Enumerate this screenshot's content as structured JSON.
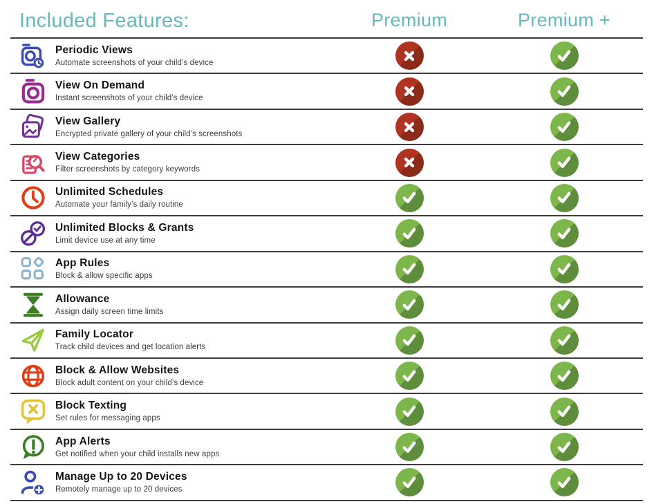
{
  "header": {
    "title": "Included Features:",
    "premium_label": "Premium",
    "premium_plus_label": "Premium +",
    "accent_color": "#68b7be"
  },
  "badge_colors": {
    "check_base": "#7db64a",
    "check_shadow": "#5e8e3c",
    "cross_base": "#b03322",
    "cross_shadow": "#8c2a1a"
  },
  "rows": [
    {
      "icon": "periodic-views-icon",
      "icon_color": "#3b4cb4",
      "title": "Periodic Views",
      "description": "Automate screenshots of your child’s device",
      "premium": "cross",
      "premium_plus": "check"
    },
    {
      "icon": "view-on-demand-icon",
      "icon_color": "#992c8f",
      "title": "View On Demand",
      "description": "Instant screenshots of your child’s device",
      "premium": "cross",
      "premium_plus": "check"
    },
    {
      "icon": "view-gallery-icon",
      "icon_color": "#6e2d96",
      "title": "View Gallery",
      "description": "Encrypted private gallery of your child’s screenshots",
      "premium": "cross",
      "premium_plus": "check"
    },
    {
      "icon": "view-categories-icon",
      "icon_color": "#d84767",
      "title": "View Categories",
      "description": "Filter screenshots by category keywords",
      "premium": "cross",
      "premium_plus": "check"
    },
    {
      "icon": "unlimited-schedules-icon",
      "icon_color": "#dc4016",
      "title": "Unlimited Schedules",
      "description": "Automate your family’s daily routine",
      "premium": "check",
      "premium_plus": "check"
    },
    {
      "icon": "unlimited-blocks-grants-icon",
      "icon_color": "#5d2c91",
      "title": "Unlimited Blocks & Grants",
      "description": "Limit device use at any time",
      "premium": "check",
      "premium_plus": "check"
    },
    {
      "icon": "app-rules-icon",
      "icon_color": "#8fb3cd",
      "title": "App Rules",
      "description": "Block & allow specific apps",
      "premium": "check",
      "premium_plus": "check"
    },
    {
      "icon": "allowance-icon",
      "icon_color": "#3e7d23",
      "title": "Allowance",
      "description": "Assign daily screen time limits",
      "premium": "check",
      "premium_plus": "check"
    },
    {
      "icon": "family-locator-icon",
      "icon_color": "#9aca3c",
      "title": "Family Locator",
      "description": "Track child devices and get location alerts",
      "premium": "check",
      "premium_plus": "check"
    },
    {
      "icon": "block-allow-websites-icon",
      "icon_color": "#dc4016",
      "title": "Block & Allow Websites",
      "description": "Block adult content on your child’s device",
      "premium": "check",
      "premium_plus": "check"
    },
    {
      "icon": "block-texting-icon",
      "icon_color": "#e2c33b",
      "title": "Block Texting",
      "description": "Set rules for messaging apps",
      "premium": "check",
      "premium_plus": "check"
    },
    {
      "icon": "app-alerts-icon",
      "icon_color": "#3c7d26",
      "title": "App Alerts",
      "description": "Get notified when your child installs new apps",
      "premium": "check",
      "premium_plus": "check"
    },
    {
      "icon": "manage-devices-icon",
      "icon_color": "#3b4cb4",
      "title": "Manage Up to 20 Devices",
      "description": "Remotely manage up to 20 devices",
      "premium": "check",
      "premium_plus": "check"
    }
  ]
}
